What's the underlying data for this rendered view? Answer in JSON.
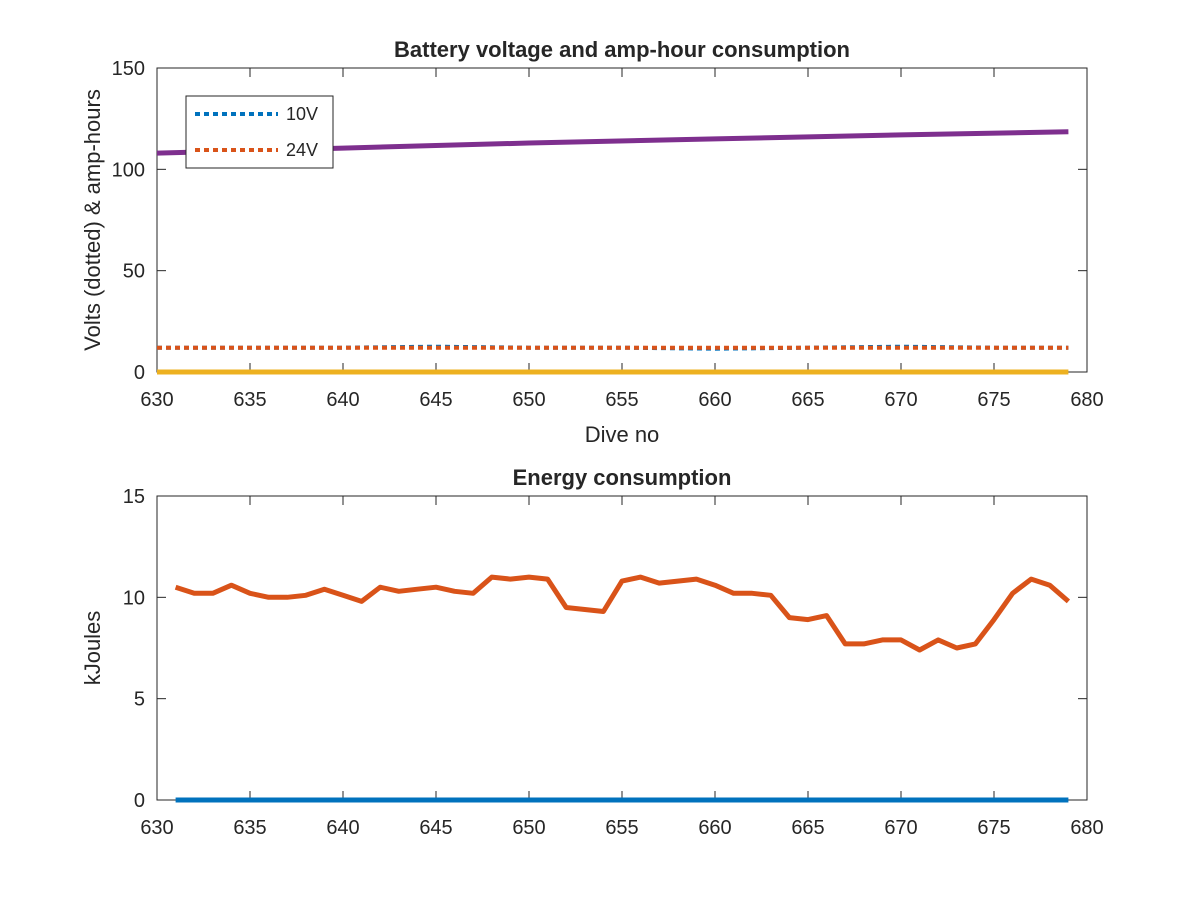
{
  "chart_data": [
    {
      "type": "line",
      "title": "Battery voltage and amp-hour consumption",
      "xlabel": "Dive no",
      "ylabel": "Volts (dotted) & amp-hours",
      "xlim": [
        630,
        680
      ],
      "ylim": [
        0,
        150
      ],
      "xticks": [
        630,
        635,
        640,
        645,
        650,
        655,
        660,
        665,
        670,
        675,
        680
      ],
      "yticks": [
        0,
        50,
        100,
        150
      ],
      "grid": false,
      "legend": "top-left",
      "series": [
        {
          "name": "10V",
          "style": "dotted",
          "color": "#0072BD",
          "x": [
            630,
            635,
            640,
            645,
            650,
            655,
            660,
            665,
            670,
            675,
            679
          ],
          "y": [
            12,
            12,
            12,
            12.5,
            12,
            12,
            11.5,
            12,
            12.5,
            12,
            12
          ]
        },
        {
          "name": "24V",
          "style": "dotted",
          "color": "#D95319",
          "x": [
            630,
            635,
            640,
            645,
            650,
            655,
            660,
            665,
            670,
            675,
            679
          ],
          "y": [
            12,
            12,
            12,
            12,
            12,
            12,
            12,
            12,
            12,
            12,
            12
          ]
        },
        {
          "style": "solid",
          "color": "#7E2F8E",
          "x": [
            630,
            640,
            650,
            660,
            670,
            679
          ],
          "y": [
            108,
            110.5,
            113,
            115,
            117,
            118.5
          ]
        },
        {
          "style": "solid",
          "color": "#EDB120",
          "x": [
            630,
            679
          ],
          "y": [
            0,
            0
          ]
        }
      ]
    },
    {
      "type": "line",
      "title": "Energy consumption",
      "xlabel": "",
      "ylabel": "kJoules",
      "xlim": [
        630,
        680
      ],
      "ylim": [
        0,
        15
      ],
      "xticks": [
        630,
        635,
        640,
        645,
        650,
        655,
        660,
        665,
        670,
        675,
        680
      ],
      "yticks": [
        0,
        5,
        10,
        15
      ],
      "grid": false,
      "series": [
        {
          "style": "solid",
          "color": "#D95319",
          "x": [
            631,
            632,
            633,
            634,
            635,
            636,
            637,
            638,
            639,
            640,
            641,
            642,
            643,
            644,
            645,
            646,
            647,
            648,
            649,
            650,
            651,
            652,
            653,
            654,
            655,
            656,
            657,
            658,
            659,
            660,
            661,
            662,
            663,
            664,
            665,
            666,
            667,
            668,
            669,
            670,
            671,
            672,
            673,
            674,
            675,
            676,
            677,
            678,
            679
          ],
          "y": [
            10.5,
            10.2,
            10.2,
            10.6,
            10.2,
            10.0,
            10.0,
            10.1,
            10.4,
            10.1,
            9.8,
            10.5,
            10.3,
            10.4,
            10.5,
            10.3,
            10.2,
            11.0,
            10.9,
            11.0,
            10.9,
            9.5,
            9.4,
            9.3,
            10.8,
            11.0,
            10.7,
            10.8,
            10.9,
            10.6,
            10.2,
            10.2,
            10.1,
            9.0,
            8.9,
            9.1,
            7.7,
            7.7,
            7.9,
            7.9,
            7.4,
            7.9,
            7.5,
            7.7,
            8.9,
            10.2,
            10.9,
            10.6,
            9.8
          ]
        },
        {
          "style": "solid",
          "color": "#0072BD",
          "x": [
            631,
            679
          ],
          "y": [
            0,
            0
          ]
        }
      ]
    }
  ]
}
